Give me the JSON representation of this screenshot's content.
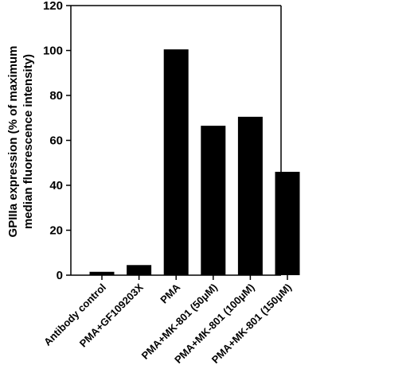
{
  "chart_data": {
    "type": "bar",
    "ylabel_lines": [
      "GPIIIa expression (% of maximum",
      "median fluorescence intensity)"
    ],
    "categories": [
      "Antibody control",
      "PMA+GF109203X",
      "PMA",
      "PMA+MK-801 (50μM)",
      "PMA+MK-801 (100μM)",
      "PMA+MK-801 (150μM)"
    ],
    "values": [
      1.5,
      4.5,
      100.5,
      66.5,
      70.5,
      46
    ],
    "ylim": [
      0,
      120
    ],
    "yticks": [
      "0",
      "20",
      "40",
      "60",
      "80",
      "100",
      "120"
    ],
    "grid": false,
    "bar_color": "#000000"
  }
}
